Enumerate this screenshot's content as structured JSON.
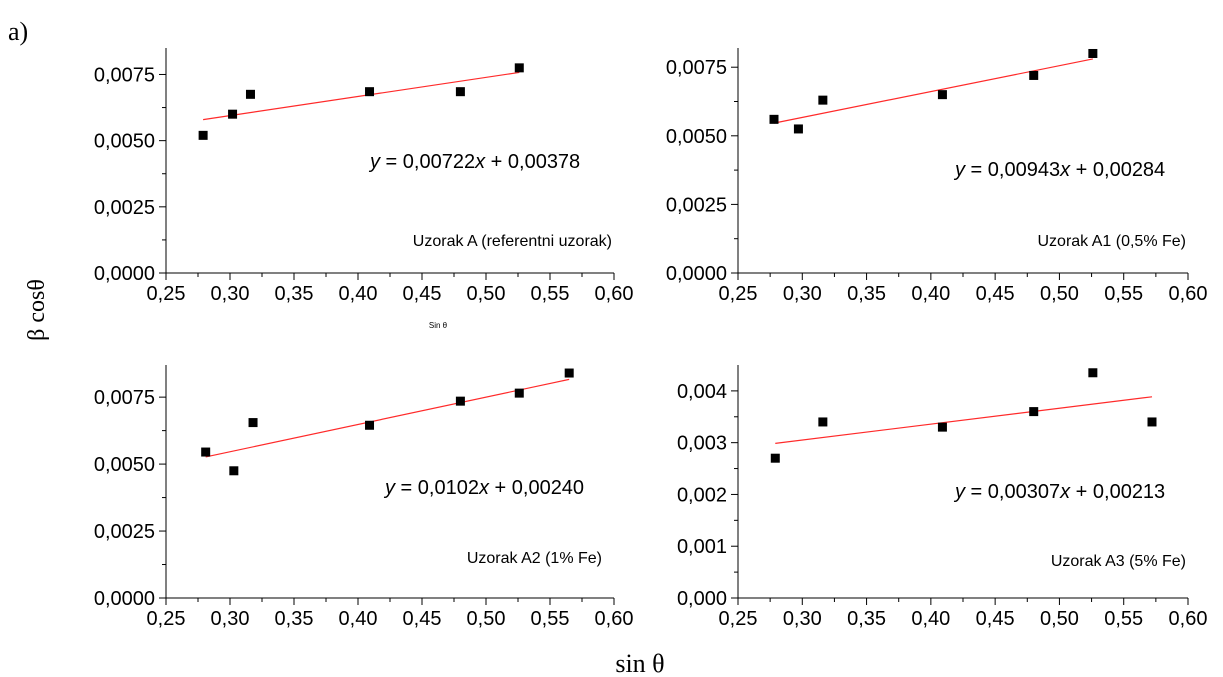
{
  "figure": {
    "panel_letter": "a)",
    "y_axis_label": "β cosθ",
    "x_axis_label": "sin θ"
  },
  "colors": {
    "fit_line": "#ff2a2a",
    "points": "#000000"
  },
  "chart_data": [
    {
      "type": "scatter",
      "title": "",
      "xlabel": "Sin θ",
      "xlim": [
        0.25,
        0.6
      ],
      "ylim": [
        0.0,
        0.0085
      ],
      "xticks": [
        "0,25",
        "0,30",
        "0,35",
        "0,40",
        "0,45",
        "0,50",
        "0,55",
        "0,60"
      ],
      "yticks": [
        "0,0000",
        "0,0025",
        "0,0050",
        "0,0075"
      ],
      "ytick_values": [
        0.0,
        0.0025,
        0.005,
        0.0075
      ],
      "x": [
        0.279,
        0.302,
        0.316,
        0.409,
        0.48,
        0.526
      ],
      "y": [
        0.0052,
        0.006,
        0.00675,
        0.00685,
        0.00685,
        0.00775
      ],
      "fit": {
        "slope": 0.00722,
        "intercept": 0.00378,
        "x_range": [
          0.279,
          0.526
        ]
      },
      "equation": {
        "y": "y",
        "mid": " = 0,00722",
        "x": "x",
        "tail": " + 0,00378"
      },
      "annotation": "Uzorak A (referentni uzorak)"
    },
    {
      "type": "scatter",
      "title": "",
      "xlabel": "",
      "xlim": [
        0.25,
        0.6
      ],
      "ylim": [
        0.0,
        0.0082
      ],
      "xticks": [
        "0,25",
        "0,30",
        "0,35",
        "0,40",
        "0,45",
        "0,50",
        "0,55",
        "0,60"
      ],
      "yticks": [
        "0,0000",
        "0,0025",
        "0,0050",
        "0,0075"
      ],
      "ytick_values": [
        0.0,
        0.0025,
        0.005,
        0.0075
      ],
      "x": [
        0.278,
        0.297,
        0.316,
        0.409,
        0.48,
        0.526
      ],
      "y": [
        0.0056,
        0.00525,
        0.0063,
        0.0065,
        0.0072,
        0.008
      ],
      "fit": {
        "slope": 0.00943,
        "intercept": 0.00284,
        "x_range": [
          0.278,
          0.526
        ]
      },
      "equation": {
        "y": "y",
        "mid": " = 0,00943",
        "x": "x",
        "tail": " + 0,00284"
      },
      "annotation": "Uzorak A1 (0,5% Fe)"
    },
    {
      "type": "scatter",
      "title": "",
      "xlabel": "",
      "xlim": [
        0.25,
        0.6
      ],
      "ylim": [
        0.0,
        0.0087
      ],
      "xticks": [
        "0,25",
        "0,30",
        "0,35",
        "0,40",
        "0,45",
        "0,50",
        "0,55",
        "0,60"
      ],
      "yticks": [
        "0,0000",
        "0,0025",
        "0,0050",
        "0,0075"
      ],
      "ytick_values": [
        0.0,
        0.0025,
        0.005,
        0.0075
      ],
      "x": [
        0.281,
        0.303,
        0.318,
        0.409,
        0.48,
        0.526,
        0.565
      ],
      "y": [
        0.00545,
        0.00475,
        0.00655,
        0.00645,
        0.00735,
        0.00765,
        0.0084
      ],
      "fit": {
        "slope": 0.0102,
        "intercept": 0.0024,
        "x_range": [
          0.281,
          0.565
        ]
      },
      "equation": {
        "y": "y",
        "mid": " = 0,0102",
        "x": "x",
        "tail": " + 0,00240"
      },
      "annotation": "Uzorak A2 (1% Fe)"
    },
    {
      "type": "scatter",
      "title": "",
      "xlabel": "",
      "xlim": [
        0.25,
        0.6
      ],
      "ylim": [
        0.0,
        0.0045
      ],
      "xticks": [
        "0,25",
        "0,30",
        "0,35",
        "0,40",
        "0,45",
        "0,50",
        "0,55",
        "0,60"
      ],
      "yticks": [
        "0,000",
        "0,001",
        "0,002",
        "0,003",
        "0,004"
      ],
      "ytick_values": [
        0.0,
        0.001,
        0.002,
        0.003,
        0.004
      ],
      "x": [
        0.279,
        0.316,
        0.409,
        0.48,
        0.526,
        0.572
      ],
      "y": [
        0.0027,
        0.0034,
        0.0033,
        0.0036,
        0.00435,
        0.0034
      ],
      "fit": {
        "slope": 0.00307,
        "intercept": 0.00213,
        "x_range": [
          0.279,
          0.572
        ]
      },
      "equation": {
        "y": "y",
        "mid": " = 0,00307",
        "x": "x",
        "tail": " + 0,00213"
      },
      "annotation": "Uzorak A3 (5% Fe)"
    }
  ]
}
